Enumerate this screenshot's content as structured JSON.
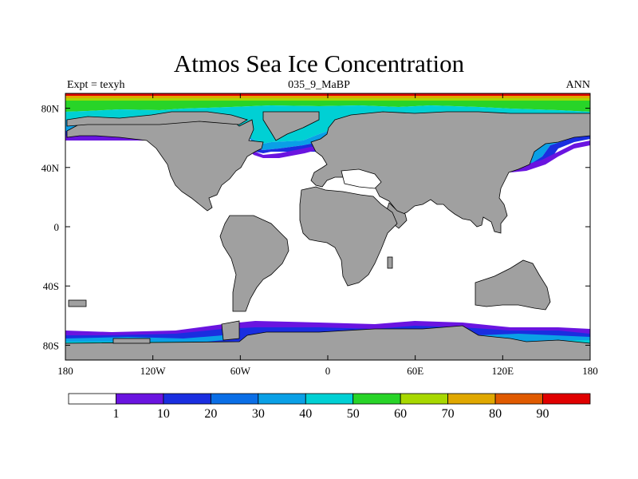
{
  "title": "Atmos Sea Ice Concentration",
  "subtitle_left": "Expt = texyh",
  "subtitle_center": "035_9_MaBP",
  "subtitle_right": "ANN",
  "lon_ticks": [
    "180",
    "120W",
    "60W",
    "0",
    "60E",
    "120E",
    "180"
  ],
  "lat_ticks": [
    "80N",
    "40N",
    "0",
    "40S",
    "80S"
  ],
  "colorbar": {
    "labels": [
      "1",
      "10",
      "20",
      "30",
      "40",
      "50",
      "60",
      "70",
      "80",
      "90"
    ],
    "colors": [
      "#ffffff",
      "#6a14e0",
      "#1a2ee0",
      "#0a6ee6",
      "#0aa0e6",
      "#00d0d4",
      "#28d428",
      "#a8d800",
      "#e0a800",
      "#e05a00",
      "#e00000"
    ]
  },
  "colors": {
    "land": "#a0a0a0",
    "ocean": "#ffffff",
    "ice_edge": "#6a14e0",
    "ice_10": "#1a2ee0",
    "ice_30": "#0aa0e6",
    "ice_50": "#00d0d4",
    "ice_60": "#28d428",
    "ice_70": "#a8d800",
    "ice_80": "#e0a800",
    "ice_90": "#e00000"
  }
}
